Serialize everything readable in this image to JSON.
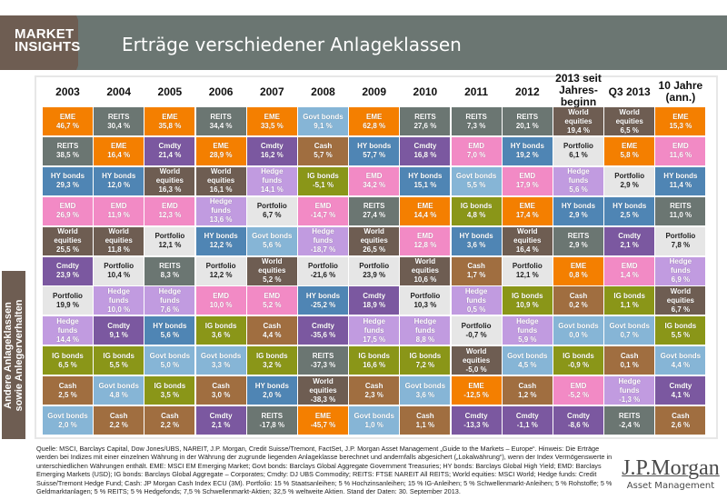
{
  "header": {
    "tag_line1": "MARKET",
    "tag_line2": "INSIGHTS",
    "title": "Erträge verschiedener Anlageklassen"
  },
  "side_label": {
    "line1": "Andere Anlageklassen",
    "line2": "sowie Anlegerverhalten"
  },
  "colors": {
    "EME": "#f47f00",
    "REITS": "#6b7672",
    "HY bonds": "#4f85b4",
    "EMD": "#f28ac5",
    "World equities": "#6e5d52",
    "Cmdty": "#7b58a0",
    "Portfolio": "#e6e6e6",
    "Hedge funds": "#c19be0",
    "IG bonds": "#8a9618",
    "Cash": "#a06e40",
    "Govt bonds": "#86b5d6"
  },
  "chart_data": {
    "type": "table",
    "title": "Erträge verschiedener Anlageklassen",
    "columns": [
      "2003",
      "2004",
      "2005",
      "2006",
      "2007",
      "2008",
      "2009",
      "2010",
      "2011",
      "2012",
      "2013 seit Jahres-beginn",
      "Q3 2013",
      "10 Jahre (ann.)"
    ],
    "column_lines": [
      [
        "2003"
      ],
      [
        "2004"
      ],
      [
        "2005"
      ],
      [
        "2006"
      ],
      [
        "2007"
      ],
      [
        "2008"
      ],
      [
        "2009"
      ],
      [
        "2010"
      ],
      [
        "2011"
      ],
      [
        "2012"
      ],
      [
        "2013 seit",
        "Jahres-",
        "beginn"
      ],
      [
        "Q3 2013"
      ],
      [
        "10 Jahre",
        "(ann.)"
      ]
    ],
    "unit": "%",
    "ranking": [
      [
        {
          "asset": "EME",
          "value": "46,7 %"
        },
        {
          "asset": "REITS",
          "value": "38,5 %"
        },
        {
          "asset": "HY bonds",
          "value": "29,3 %"
        },
        {
          "asset": "EMD",
          "value": "26,9 %"
        },
        {
          "asset": "World equities",
          "value": "25,5 %"
        },
        {
          "asset": "Cmdty",
          "value": "23,9 %"
        },
        {
          "asset": "Portfolio",
          "value": "19,9 %"
        },
        {
          "asset": "Hedge funds",
          "value": "14,4 %"
        },
        {
          "asset": "IG bonds",
          "value": "6,5 %"
        },
        {
          "asset": "Cash",
          "value": "2,5 %"
        },
        {
          "asset": "Govt bonds",
          "value": "2,0 %"
        }
      ],
      [
        {
          "asset": "REITS",
          "value": "30,4 %"
        },
        {
          "asset": "EME",
          "value": "16,4 %"
        },
        {
          "asset": "HY bonds",
          "value": "12,0 %"
        },
        {
          "asset": "EMD",
          "value": "11,9 %"
        },
        {
          "asset": "World equities",
          "value": "11,8 %"
        },
        {
          "asset": "Portfolio",
          "value": "10,4 %"
        },
        {
          "asset": "Hedge funds",
          "value": "10,0 %"
        },
        {
          "asset": "Cmdty",
          "value": "9,1 %"
        },
        {
          "asset": "IG bonds",
          "value": "5,5 %"
        },
        {
          "asset": "Govt bonds",
          "value": "4,8 %"
        },
        {
          "asset": "Cash",
          "value": "2,2 %"
        }
      ],
      [
        {
          "asset": "EME",
          "value": "35,8 %"
        },
        {
          "asset": "Cmdty",
          "value": "21,4 %"
        },
        {
          "asset": "World equities",
          "value": "16,3 %"
        },
        {
          "asset": "EMD",
          "value": "12,3 %"
        },
        {
          "asset": "Portfolio",
          "value": "12,1 %"
        },
        {
          "asset": "REITS",
          "value": "8,3 %"
        },
        {
          "asset": "Hedge funds",
          "value": "7,6 %"
        },
        {
          "asset": "HY bonds",
          "value": "5,6 %"
        },
        {
          "asset": "Govt bonds",
          "value": "5,0 %"
        },
        {
          "asset": "IG bonds",
          "value": "3,5 %"
        },
        {
          "asset": "Cash",
          "value": "2,2 %"
        }
      ],
      [
        {
          "asset": "REITS",
          "value": "34,4 %"
        },
        {
          "asset": "EME",
          "value": "28,9 %"
        },
        {
          "asset": "World equities",
          "value": "16,1 %"
        },
        {
          "asset": "Hedge funds",
          "value": "13,6 %"
        },
        {
          "asset": "HY bonds",
          "value": "12,2 %"
        },
        {
          "asset": "Portfolio",
          "value": "12,2 %"
        },
        {
          "asset": "EMD",
          "value": "10,0 %"
        },
        {
          "asset": "IG bonds",
          "value": "3,6 %"
        },
        {
          "asset": "Govt bonds",
          "value": "3,3 %"
        },
        {
          "asset": "Cash",
          "value": "3,0 %"
        },
        {
          "asset": "Cmdty",
          "value": "2,1 %"
        }
      ],
      [
        {
          "asset": "EME",
          "value": "33,5 %"
        },
        {
          "asset": "Cmdty",
          "value": "16,2 %"
        },
        {
          "asset": "Hedge funds",
          "value": "14,1 %"
        },
        {
          "asset": "Portfolio",
          "value": "6,7 %"
        },
        {
          "asset": "Govt bonds",
          "value": "5,6 %"
        },
        {
          "asset": "World equities",
          "value": "5,2 %"
        },
        {
          "asset": "EMD",
          "value": "5,2 %"
        },
        {
          "asset": "Cash",
          "value": "4,4 %"
        },
        {
          "asset": "IG bonds",
          "value": "3,2 %"
        },
        {
          "asset": "HY bonds",
          "value": "2,0 %"
        },
        {
          "asset": "REITS",
          "value": "-17,8 %"
        }
      ],
      [
        {
          "asset": "Govt bonds",
          "value": "9,1 %"
        },
        {
          "asset": "Cash",
          "value": "5,7 %"
        },
        {
          "asset": "IG bonds",
          "value": "-5,1 %"
        },
        {
          "asset": "EMD",
          "value": "-14,7 %"
        },
        {
          "asset": "Hedge funds",
          "value": "-18,7 %"
        },
        {
          "asset": "Portfolio",
          "value": "-21,6 %"
        },
        {
          "asset": "HY bonds",
          "value": "-25,2 %"
        },
        {
          "asset": "Cmdty",
          "value": "-35,6 %"
        },
        {
          "asset": "REITS",
          "value": "-37,3 %"
        },
        {
          "asset": "World equities",
          "value": "-38,3 %"
        },
        {
          "asset": "EME",
          "value": "-45,7 %"
        }
      ],
      [
        {
          "asset": "EME",
          "value": "62,8 %"
        },
        {
          "asset": "HY bonds",
          "value": "57,7 %"
        },
        {
          "asset": "EMD",
          "value": "34,2 %"
        },
        {
          "asset": "REITS",
          "value": "27,4 %"
        },
        {
          "asset": "World equities",
          "value": "26,5 %"
        },
        {
          "asset": "Portfolio",
          "value": "23,9 %"
        },
        {
          "asset": "Cmdty",
          "value": "18,9 %"
        },
        {
          "asset": "Hedge funds",
          "value": "17,5 %"
        },
        {
          "asset": "IG bonds",
          "value": "16,6 %"
        },
        {
          "asset": "Cash",
          "value": "2,3 %"
        },
        {
          "asset": "Govt bonds",
          "value": "1,0 %"
        }
      ],
      [
        {
          "asset": "REITS",
          "value": "27,6 %"
        },
        {
          "asset": "Cmdty",
          "value": "16,8 %"
        },
        {
          "asset": "HY bonds",
          "value": "15,1 %"
        },
        {
          "asset": "EME",
          "value": "14,4 %"
        },
        {
          "asset": "EMD",
          "value": "12,8 %"
        },
        {
          "asset": "World equities",
          "value": "10,6 %"
        },
        {
          "asset": "Portfolio",
          "value": "10,3 %"
        },
        {
          "asset": "Hedge funds",
          "value": "8,8 %"
        },
        {
          "asset": "IG bonds",
          "value": "7,2 %"
        },
        {
          "asset": "Govt bonds",
          "value": "3,6 %"
        },
        {
          "asset": "Cash",
          "value": "1,1 %"
        }
      ],
      [
        {
          "asset": "REITS",
          "value": "7,3 %"
        },
        {
          "asset": "EMD",
          "value": "7,0 %"
        },
        {
          "asset": "Govt bonds",
          "value": "5,5 %"
        },
        {
          "asset": "IG bonds",
          "value": "4,8 %"
        },
        {
          "asset": "HY bonds",
          "value": "3,6 %"
        },
        {
          "asset": "Cash",
          "value": "1,7 %"
        },
        {
          "asset": "Hedge funds",
          "value": "0,5 %"
        },
        {
          "asset": "Portfolio",
          "value": "-0,7 %"
        },
        {
          "asset": "World equities",
          "value": "-5,0 %"
        },
        {
          "asset": "EME",
          "value": "-12,5 %"
        },
        {
          "asset": "Cmdty",
          "value": "-13,3 %"
        }
      ],
      [
        {
          "asset": "REITS",
          "value": "20,1 %"
        },
        {
          "asset": "HY bonds",
          "value": "19,2 %"
        },
        {
          "asset": "EMD",
          "value": "17,9 %"
        },
        {
          "asset": "EME",
          "value": "17,4 %"
        },
        {
          "asset": "World equities",
          "value": "16,4 %"
        },
        {
          "asset": "Portfolio",
          "value": "12,1 %"
        },
        {
          "asset": "IG bonds",
          "value": "10,9 %"
        },
        {
          "asset": "Hedge funds",
          "value": "5,9 %"
        },
        {
          "asset": "Govt bonds",
          "value": "4,5 %"
        },
        {
          "asset": "Cash",
          "value": "1,2 %"
        },
        {
          "asset": "Cmdty",
          "value": "-1,1 %"
        }
      ],
      [
        {
          "asset": "World equities",
          "value": "19,4 %"
        },
        {
          "asset": "Portfolio",
          "value": "6,1 %"
        },
        {
          "asset": "Hedge funds",
          "value": "5,6 %"
        },
        {
          "asset": "HY bonds",
          "value": "2,9 %"
        },
        {
          "asset": "REITS",
          "value": "2,9 %"
        },
        {
          "asset": "EME",
          "value": "0,8 %"
        },
        {
          "asset": "Cash",
          "value": "0,2 %"
        },
        {
          "asset": "Govt bonds",
          "value": "0,0 %"
        },
        {
          "asset": "IG bonds",
          "value": "-0,9 %"
        },
        {
          "asset": "EMD",
          "value": "-5,2 %"
        },
        {
          "asset": "Cmdty",
          "value": "-8,6 %"
        }
      ],
      [
        {
          "asset": "World equities",
          "value": "6,5 %"
        },
        {
          "asset": "EME",
          "value": "5,8 %"
        },
        {
          "asset": "Portfolio",
          "value": "2,9 %"
        },
        {
          "asset": "HY bonds",
          "value": "2,5 %"
        },
        {
          "asset": "Cmdty",
          "value": "2,1 %"
        },
        {
          "asset": "EMD",
          "value": "1,4 %"
        },
        {
          "asset": "IG bonds",
          "value": "1,1 %"
        },
        {
          "asset": "Govt bonds",
          "value": "0,7 %"
        },
        {
          "asset": "Cash",
          "value": "0,1 %"
        },
        {
          "asset": "Hedge funds",
          "value": "-1,3 %"
        },
        {
          "asset": "REITS",
          "value": "-2,4 %"
        }
      ],
      [
        {
          "asset": "EME",
          "value": "15,3 %"
        },
        {
          "asset": "EMD",
          "value": "11,6 %"
        },
        {
          "asset": "HY bonds",
          "value": "11,4 %"
        },
        {
          "asset": "REITS",
          "value": "11,0 %"
        },
        {
          "asset": "Portfolio",
          "value": "7,8 %"
        },
        {
          "asset": "Hedge funds",
          "value": "6,9 %"
        },
        {
          "asset": "World equities",
          "value": "6,7 %"
        },
        {
          "asset": "IG bonds",
          "value": "5,5 %"
        },
        {
          "asset": "Govt bonds",
          "value": "4,4 %"
        },
        {
          "asset": "Cmdty",
          "value": "4,1 %"
        },
        {
          "asset": "Cash",
          "value": "2,6 %"
        }
      ]
    ]
  },
  "footnote": "Quelle: MSCI, Barclays Capital, Dow Jones/UBS, NAREIT, J.P. Morgan, Credit Suisse/Tremont, FactSet, J.P. Morgan Asset Management „Guide to the Markets – Europe“. Hinweis: Die Erträge werden bei Indizes mit einer einzelnen Währung in der Währung der zugrunde liegenden Anlageklasse berechnet und andernfalls abgesichert („Lokalwährung“), wenn der Index Vermögenswerte in unterschiedlichen Währungen enthält. EME: MSCI EM Emerging Market; Govt bonds: Barclays Global Aggregate Government Treasuries; HY bonds: Barclays Global High Yield; EMD: Barclays Emerging Markets (USD); IG bonds: Barclays Global Aggregate – Corporates; Cmdty: DJ UBS Commodity; REITS: FTSE NAREIT All REITS; World equities: MSCI World; Hedge funds: Credit Suisse/Tremont Hedge Fund; Cash: JP Morgan Cash Index ECU (3M). Portfolio: 15 % Staatsanleihen; 5 % Hochzinsanleihen; 15 % IG-Anleihen; 5 % Schwellenmarkt-Anleihen; 5 % Rohstoffe; 5 % Geldmarktanlagen; 5 % REITS; 5 % Hedgefonds; 7,5 % Schwellenmarkt-Aktien; 32,5 % weltweite Aktien. Stand der Daten: 30. September 2013.",
  "logo": {
    "main": "J.P.Morgan",
    "sub": "Asset Management"
  }
}
